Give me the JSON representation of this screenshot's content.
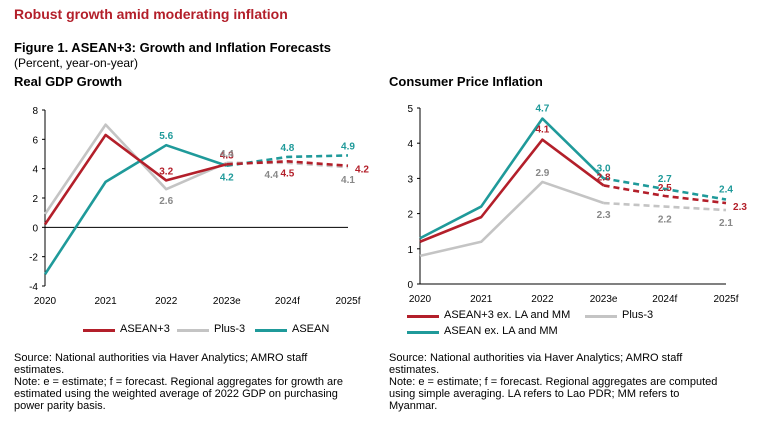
{
  "headline": "Robust growth amid moderating inflation",
  "figure_title": "Figure 1. ASEAN+3: Growth and Inflation Forecasts",
  "figure_subtitle": "(Percent, year-on-year)",
  "colors": {
    "red": "#b31f2a",
    "gray": "#c4c4c4",
    "teal": "#1f9a9a",
    "label_gray": "#888888"
  },
  "left": {
    "notes": [
      "Source: National authorities via Haver Analytics; AMRO staff",
      "estimates.",
      "Note: e = estimate; f = forecast. Regional aggregates for growth are",
      "estimated using the weighted average of 2022 GDP on purchasing",
      "power parity basis."
    ],
    "legend": [
      {
        "label": "ASEAN+3",
        "color": "#b31f2a"
      },
      {
        "label": "Plus-3",
        "color": "#c4c4c4"
      },
      {
        "label": "ASEAN",
        "color": "#1f9a9a"
      }
    ]
  },
  "right": {
    "notes": [
      "Source: National authorities via Haver Analytics; AMRO staff",
      "estimates.",
      "Note: e = estimate; f = forecast. Regional aggregates are computed",
      "using simple averaging. LA refers to Lao PDR; MM refers to",
      "Myanmar."
    ],
    "legend": [
      {
        "label": "ASEAN+3 ex. LA and MM",
        "color": "#b31f2a"
      },
      {
        "label": "Plus-3",
        "color": "#c4c4c4"
      },
      {
        "label": "ASEAN ex. LA and MM",
        "color": "#1f9a9a"
      }
    ]
  },
  "chart_data": [
    {
      "type": "line",
      "title": "Real GDP Growth",
      "categories": [
        "2020",
        "2021",
        "2022",
        "2023e",
        "2024f",
        "2025f"
      ],
      "ylim": [
        -4,
        8
      ],
      "yticks": [
        "-4",
        "-2",
        "0",
        "2",
        "4",
        "6",
        "8"
      ],
      "forecast_from_index": 3,
      "series": [
        {
          "name": "ASEAN+3",
          "color": "#b31f2a",
          "values": [
            0.2,
            6.3,
            3.2,
            4.3,
            4.5,
            4.2
          ],
          "labels": [
            null,
            null,
            "3.2",
            "4.3",
            "4.5",
            "4.2"
          ]
        },
        {
          "name": "Plus-3",
          "color": "#c4c4c4",
          "values": [
            0.9,
            7.0,
            2.6,
            4.4,
            4.4,
            4.1
          ],
          "labels": [
            null,
            null,
            "2.6",
            "4.4",
            "4.4",
            "4.1"
          ]
        },
        {
          "name": "ASEAN",
          "color": "#1f9a9a",
          "values": [
            -3.2,
            3.1,
            5.6,
            4.2,
            4.8,
            4.9
          ],
          "labels": [
            null,
            null,
            "5.6",
            "4.2",
            "4.8",
            "4.9"
          ]
        }
      ]
    },
    {
      "type": "line",
      "title": "Consumer Price Inflation",
      "categories": [
        "2020",
        "2021",
        "2022",
        "2023e",
        "2024f",
        "2025f"
      ],
      "ylim": [
        0,
        5
      ],
      "yticks": [
        "0",
        "1",
        "2",
        "3",
        "4",
        "5"
      ],
      "forecast_from_index": 3,
      "series": [
        {
          "name": "ASEAN+3 ex. LA and MM",
          "color": "#b31f2a",
          "values": [
            1.2,
            1.9,
            4.1,
            2.8,
            2.5,
            2.3
          ],
          "labels": [
            null,
            null,
            "4.1",
            "2.8",
            "2.5",
            "2.3"
          ]
        },
        {
          "name": "Plus-3",
          "color": "#c4c4c4",
          "values": [
            0.8,
            1.2,
            2.9,
            2.3,
            2.2,
            2.1
          ],
          "labels": [
            null,
            null,
            "2.9",
            "2.3",
            "2.2",
            "2.1"
          ]
        },
        {
          "name": "ASEAN ex. LA and MM",
          "color": "#1f9a9a",
          "values": [
            1.3,
            2.2,
            4.7,
            3.0,
            2.7,
            2.4
          ],
          "labels": [
            null,
            null,
            "4.7",
            "3.0",
            "2.7",
            "2.4"
          ]
        }
      ]
    }
  ]
}
